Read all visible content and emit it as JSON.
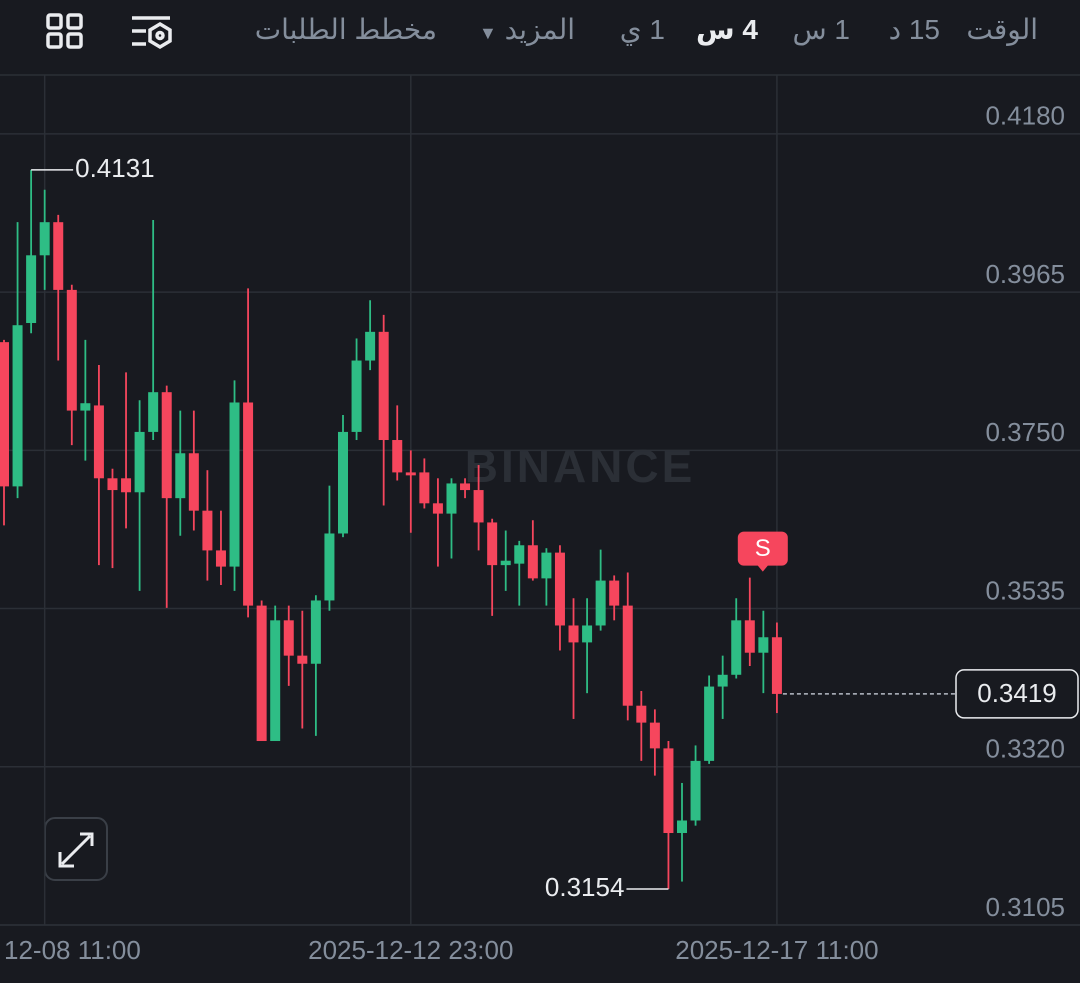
{
  "toolbar": {
    "intervals": [
      "الوقت",
      "15 د",
      "1 س",
      "4 س",
      "1 ي"
    ],
    "active": 3,
    "more": "المزيد",
    "orderbook": "مخطط الطلبات"
  },
  "chart_data": {
    "type": "candlestick",
    "watermark": "BINANCE",
    "categories": [
      null,
      null,
      null,
      "12-08 11:00",
      null,
      null,
      null,
      null,
      null,
      null,
      null,
      null,
      null,
      null,
      null,
      null,
      null,
      null,
      null,
      null,
      null,
      null,
      null,
      null,
      null,
      null,
      null,
      null,
      null,
      null,
      "2025-12-12 23:00",
      null,
      null,
      null,
      null,
      null,
      null,
      null,
      null,
      null,
      null,
      null,
      null,
      null,
      null,
      null,
      null,
      null,
      null,
      null,
      null,
      null,
      null,
      null,
      null,
      null,
      null,
      "2025-12-17 11:00"
    ],
    "open": [
      0.3897,
      0.3701,
      0.3923,
      0.4015,
      0.406,
      0.3968,
      0.3804,
      0.3811,
      0.3712,
      0.3712,
      0.3693,
      0.3775,
      0.3829,
      0.3685,
      0.3746,
      0.3668,
      0.3614,
      0.3592,
      0.3815,
      0.3539,
      0.3355,
      0.3519,
      0.3471,
      0.346,
      0.3546,
      0.3637,
      0.3775,
      0.3872,
      0.3911,
      0.3764,
      0.372,
      0.372,
      0.3678,
      0.3664,
      0.3705,
      0.3696,
      0.3652,
      0.3594,
      0.3596,
      0.3621,
      0.3576,
      0.3611,
      0.3512,
      0.3489,
      0.3512,
      0.3573,
      0.3539,
      0.3403,
      0.338,
      0.3345,
      0.323,
      0.3247,
      0.3328,
      0.3429,
      0.3445,
      0.3519,
      0.3475,
      0.3496
    ],
    "high": [
      0.39,
      0.406,
      0.4131,
      0.4104,
      0.407,
      0.3975,
      0.39,
      0.3866,
      0.3725,
      0.3856,
      0.3818,
      0.4063,
      0.3838,
      0.3804,
      0.3804,
      0.3723,
      0.3668,
      0.3845,
      0.397,
      0.3546,
      0.3539,
      0.3539,
      0.3532,
      0.3553,
      0.3702,
      0.3798,
      0.3902,
      0.3954,
      0.3934,
      0.3811,
      0.375,
      0.3739,
      0.3712,
      0.3712,
      0.3712,
      0.373,
      0.3657,
      0.3641,
      0.3627,
      0.3655,
      0.3617,
      0.3621,
      0.3549,
      0.3549,
      0.3615,
      0.358,
      0.3584,
      0.3423,
      0.3398,
      0.3355,
      0.3298,
      0.3349,
      0.3444,
      0.3471,
      0.3549,
      0.3577,
      0.3532,
      0.3516
    ],
    "low": [
      0.3648,
      0.3685,
      0.3909,
      0.3968,
      0.3872,
      0.3757,
      0.3736,
      0.3594,
      0.359,
      0.3644,
      0.3559,
      0.3764,
      0.3536,
      0.3634,
      0.3641,
      0.3573,
      0.3567,
      0.3559,
      0.3523,
      0.3355,
      0.3355,
      0.343,
      0.3372,
      0.3362,
      0.3532,
      0.3632,
      0.3764,
      0.3859,
      0.3675,
      0.3709,
      0.3638,
      0.3671,
      0.3592,
      0.3603,
      0.3685,
      0.3614,
      0.3525,
      0.3559,
      0.3539,
      0.3573,
      0.3539,
      0.3478,
      0.3385,
      0.342,
      0.3505,
      0.3519,
      0.3383,
      0.3328,
      0.3308,
      0.3154,
      0.3164,
      0.324,
      0.3324,
      0.3385,
      0.344,
      0.3457,
      0.342,
      0.3393
    ],
    "close": [
      0.3701,
      0.392,
      0.4015,
      0.406,
      0.3968,
      0.3804,
      0.3814,
      0.3712,
      0.3696,
      0.3693,
      0.3775,
      0.3829,
      0.3685,
      0.3746,
      0.3668,
      0.3614,
      0.3592,
      0.3815,
      0.3539,
      0.3355,
      0.3519,
      0.3471,
      0.346,
      0.3546,
      0.3637,
      0.3775,
      0.3872,
      0.3911,
      0.3764,
      0.372,
      0.3716,
      0.3678,
      0.3664,
      0.3705,
      0.3696,
      0.3652,
      0.3594,
      0.36,
      0.3621,
      0.3576,
      0.3611,
      0.3512,
      0.3489,
      0.3512,
      0.3573,
      0.3539,
      0.3403,
      0.338,
      0.3345,
      0.323,
      0.3247,
      0.3328,
      0.3429,
      0.3445,
      0.3519,
      0.3475,
      0.3496,
      0.3419
    ],
    "up_color": "#2ebd85",
    "down_color": "#f6465d",
    "ylim": [
      0.3105,
      0.426
    ],
    "yticks": [
      {
        "value": 0.418,
        "label": "0.4180"
      },
      0.3965,
      {
        "value": 0.375,
        "label": "0.3750"
      },
      0.3535,
      {
        "value": 0.332,
        "label": "0.3320"
      },
      0.3105
    ],
    "grid": true,
    "high_label": 0.4131,
    "low_label": 0.3154,
    "last_price": 0.3419,
    "signal": {
      "index": 55,
      "label": "S"
    }
  }
}
